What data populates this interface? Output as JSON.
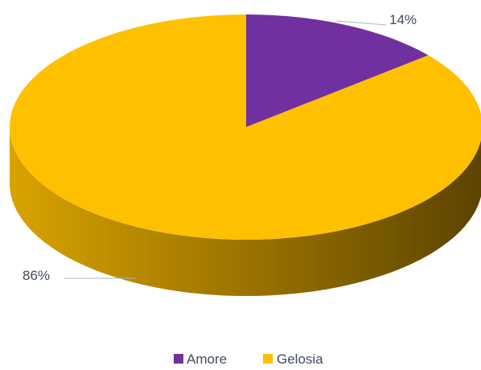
{
  "chart_data": {
    "type": "pie",
    "style": "3d",
    "categories": [
      "Amore",
      "Gelosia"
    ],
    "values": [
      14,
      86
    ],
    "labels": [
      "14%",
      "86%"
    ],
    "colors": [
      "#7030a0",
      "#ffc000"
    ],
    "side_colors": [
      "#4f2272",
      "#c99700"
    ],
    "legend": {
      "position": "bottom",
      "entries": [
        "Amore",
        "Gelosia"
      ]
    },
    "title": ""
  }
}
